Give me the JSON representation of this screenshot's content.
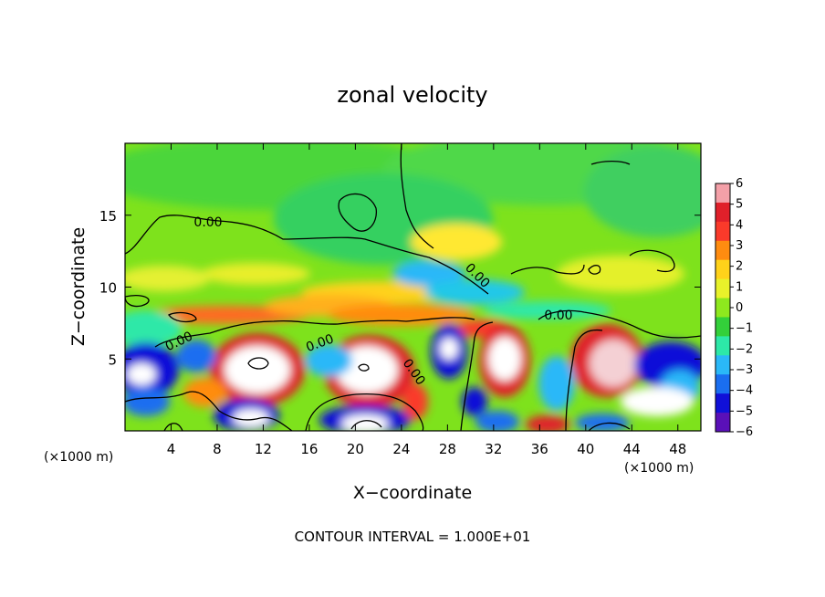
{
  "chart_data": {
    "type": "heatmap",
    "title": "zonal velocity",
    "xlabel": "X−coordinate",
    "ylabel": "Z−coordinate",
    "x_unit_label": "(×1000 m)",
    "xlim": [
      0,
      50
    ],
    "ylim": [
      0,
      20
    ],
    "x_ticks": [
      4,
      8,
      12,
      16,
      20,
      24,
      28,
      32,
      36,
      40,
      44,
      48
    ],
    "y_ticks": [
      5,
      10,
      15
    ],
    "colorbar": {
      "range": [
        -6,
        6
      ],
      "ticks": [
        6,
        5,
        4,
        3,
        2,
        1,
        0,
        -1,
        -2,
        -3,
        -4,
        -5,
        -6
      ],
      "colors": [
        "#f4a0a8",
        "#e0202a",
        "#fa3a2a",
        "#ff8c10",
        "#ffd21a",
        "#e8f22a",
        "#8ee81e",
        "#33d03a",
        "#2de8a8",
        "#2ab8f8",
        "#1a6ef0",
        "#1010d8",
        "#5a10b8"
      ]
    },
    "contour_labels": [
      "0.00",
      "0.00",
      "0.00",
      "0.00",
      "0.00",
      "0.00"
    ],
    "contour_interval_label": "CONTOUR INTERVAL = 1.000E+01",
    "grid": false
  }
}
